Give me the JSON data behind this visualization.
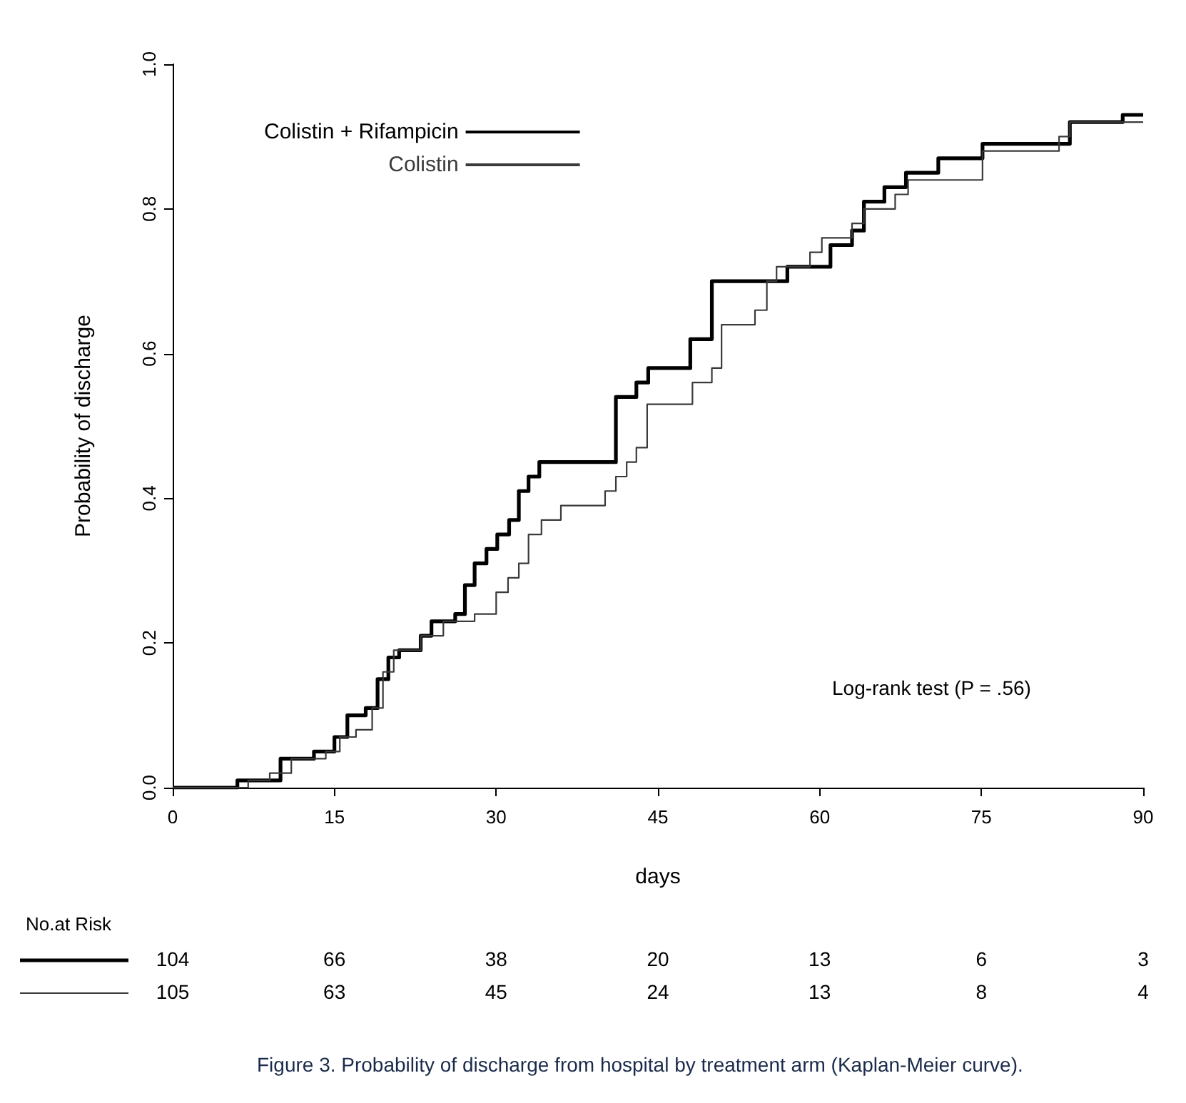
{
  "chart_data": {
    "type": "step",
    "xlabel": "days",
    "ylabel": "Probability of discharge",
    "xlim": [
      0,
      90
    ],
    "xticks": [
      0,
      15,
      30,
      45,
      60,
      75,
      90
    ],
    "ylim": [
      0,
      1
    ],
    "yticks": [
      {
        "value": 0,
        "label": "0.0"
      },
      0.2,
      0.4,
      0.6,
      0.8,
      {
        "value": 1,
        "label": "1.0"
      }
    ],
    "grid": false,
    "legend": "top left",
    "marker": "none",
    "line_style": "solid",
    "series": [
      {
        "name": "Colistin + Rifampicin",
        "color": "#000000",
        "x": [
          0,
          6,
          10,
          13.1,
          15,
          16.2,
          17.9,
          19,
          20,
          21,
          23,
          24,
          26.2,
          27.1,
          28,
          29.1,
          30.1,
          31.2,
          32.1,
          33,
          34,
          41.1,
          43,
          44.1,
          48,
          50,
          57,
          61,
          63,
          64.1,
          66,
          68,
          71,
          75.1,
          83.2,
          88.1,
          90
        ],
        "values": [
          0,
          0.01,
          0.04,
          0.05,
          0.07,
          0.1,
          0.11,
          0.15,
          0.18,
          0.19,
          0.21,
          0.23,
          0.24,
          0.28,
          0.31,
          0.33,
          0.35,
          0.37,
          0.41,
          0.43,
          0.45,
          0.54,
          0.56,
          0.58,
          0.62,
          0.7,
          0.72,
          0.75,
          0.77,
          0.81,
          0.83,
          0.85,
          0.87,
          0.89,
          0.92,
          0.93,
          0.93
        ]
      },
      {
        "name": "Colistin",
        "color": "#3a3a3a",
        "x": [
          0,
          7,
          9,
          11,
          14.2,
          15.5,
          17,
          18.5,
          19.5,
          20.5,
          23,
          25.1,
          28,
          30,
          31.1,
          32.1,
          33,
          34.2,
          36,
          40.1,
          41.1,
          42.1,
          43,
          44,
          48.2,
          50,
          50.9,
          54,
          55.1,
          56,
          59.1,
          60.2,
          63,
          64.1,
          67,
          68.2,
          75.1,
          82.2,
          83.2,
          90
        ],
        "values": [
          0,
          0.01,
          0.02,
          0.04,
          0.05,
          0.07,
          0.08,
          0.11,
          0.16,
          0.19,
          0.21,
          0.23,
          0.24,
          0.27,
          0.29,
          0.31,
          0.35,
          0.37,
          0.39,
          0.41,
          0.43,
          0.45,
          0.47,
          0.53,
          0.56,
          0.58,
          0.64,
          0.66,
          0.7,
          0.72,
          0.74,
          0.76,
          0.78,
          0.8,
          0.82,
          0.84,
          0.88,
          0.9,
          0.92,
          0.92
        ]
      }
    ],
    "annotations": [
      "Log-rank test (P = .56)",
      "No.at Risk",
      "104",
      "66",
      "38",
      "20",
      "13",
      "6",
      "3",
      "105",
      "63",
      "45",
      "24",
      "13",
      "8",
      "4",
      "Figure 3.    Probability of discharge from hospital by treatment arm (Kaplan-Meier curve)."
    ]
  }
}
